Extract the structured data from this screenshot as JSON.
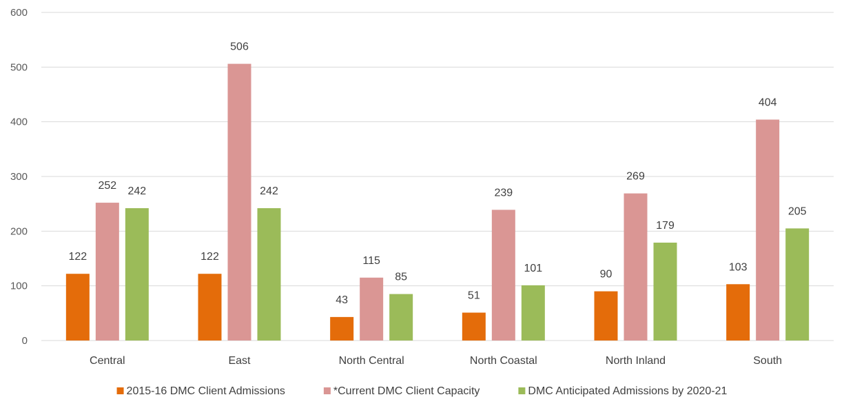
{
  "chart_data": {
    "type": "bar",
    "categories": [
      "Central",
      "East",
      "North Central",
      "North Coastal",
      "North Inland",
      "South"
    ],
    "series": [
      {
        "name": "2015-16 DMC Client Admissions",
        "values": [
          122,
          122,
          43,
          51,
          90,
          103
        ],
        "color": "#E46C0A"
      },
      {
        "name": "*Current DMC Client Capacity",
        "values": [
          252,
          506,
          115,
          239,
          269,
          404
        ],
        "color": "#DA9694"
      },
      {
        "name": "DMC Anticipated Admissions by 2020-21",
        "values": [
          242,
          242,
          85,
          101,
          179,
          205
        ],
        "color": "#9BBB59"
      }
    ],
    "ylim": [
      0,
      600
    ],
    "yticks": [
      0,
      100,
      200,
      300,
      400,
      500,
      600
    ],
    "grid": true,
    "legend_position": "bottom",
    "data_labels": true,
    "gridline_color": "#D9D9D9"
  }
}
